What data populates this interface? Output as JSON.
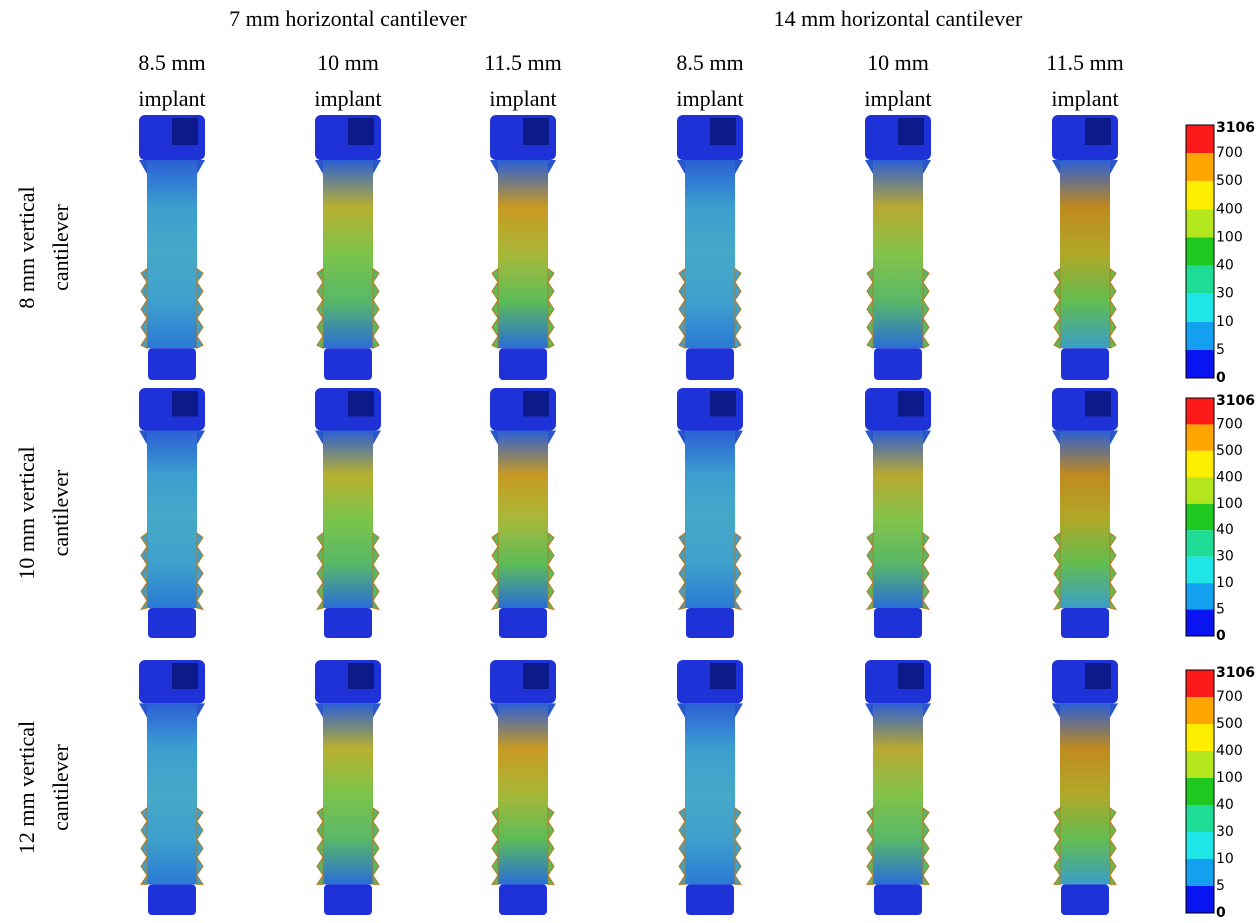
{
  "column_groups": [
    "7 mm horizontal cantilever",
    "14 mm horizontal cantilever"
  ],
  "columns": [
    {
      "size": "8.5 mm",
      "label": "implant"
    },
    {
      "size": "10 mm",
      "label": "implant"
    },
    {
      "size": "11.5 mm",
      "label": "implant"
    },
    {
      "size": "8.5 mm",
      "label": "implant"
    },
    {
      "size": "10 mm",
      "label": "implant"
    },
    {
      "size": "11.5 mm",
      "label": "implant"
    }
  ],
  "rows": [
    {
      "line1": "8 mm vertical",
      "line2": "cantilever"
    },
    {
      "line1": "10 mm vertical",
      "line2": "cantilever"
    },
    {
      "line1": "12 mm vertical",
      "line2": "cantilever"
    }
  ],
  "legend": {
    "labels": [
      3106,
      700,
      500,
      400,
      100,
      40,
      30,
      10,
      5,
      0
    ]
  }
}
